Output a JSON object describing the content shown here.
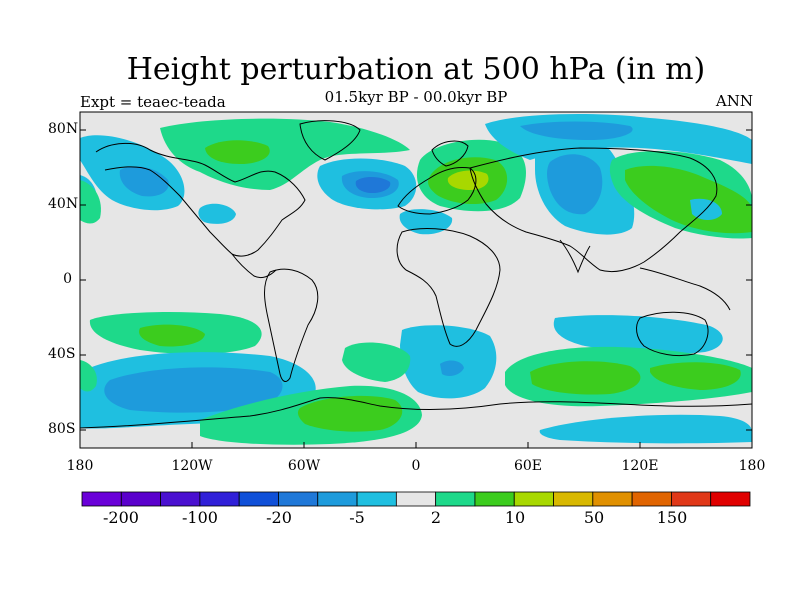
{
  "title": "Height perturbation at 500 hPa (in m)",
  "subtitle": "01.5kyr BP - 00.0kyr BP",
  "left_label": "Expt = teaec-teada",
  "right_label": "ANN",
  "lat_ticks": [
    "80N",
    "40N",
    "0",
    "40S",
    "80S"
  ],
  "lon_ticks": [
    "180",
    "120W",
    "60W",
    "0",
    "60E",
    "120E",
    "180"
  ],
  "colorbar": {
    "colors": [
      "#6a00d8",
      "#5a00cc",
      "#4a10d0",
      "#3020d8",
      "#1050d8",
      "#1f78d8",
      "#1e9bdc",
      "#1fbfe0",
      "#e6e6e6",
      "#1ed98a",
      "#3ccc1e",
      "#a8d800",
      "#d8b800",
      "#e09000",
      "#e06400",
      "#e03818",
      "#e00000"
    ],
    "labels": [
      "-200",
      "-100",
      "-20",
      "-5",
      "2",
      "10",
      "50",
      "150"
    ]
  },
  "colors": {
    "background": "#e6e6e6",
    "blue_light": "#1fbfe0",
    "blue_mid": "#1e9bdc",
    "blue_dark": "#1f78d8",
    "green_light": "#1ed98a",
    "green": "#3ccc1e",
    "yellow_green": "#a8d800"
  }
}
